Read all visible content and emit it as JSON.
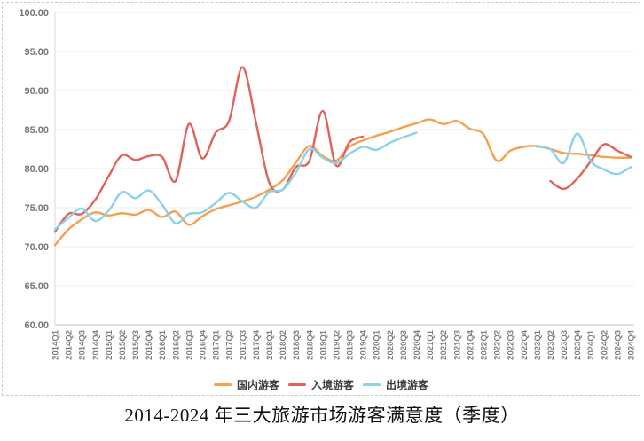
{
  "title": {
    "text": "2014-2024 年三大旅游市场游客满意度（季度）"
  },
  "chart_data": {
    "type": "line",
    "title": "2014-2024 年三大旅游市场游客满意度（季度）",
    "categories": [
      "2014Q1",
      "2014Q2",
      "2014Q3",
      "2014Q4",
      "2015Q1",
      "2015Q2",
      "2015Q3",
      "2015Q4",
      "2016Q1",
      "2016Q2",
      "2016Q3",
      "2016Q4",
      "2017Q1",
      "2017Q2",
      "2017Q3",
      "2017Q4",
      "2018Q1",
      "2018Q2",
      "2018Q3",
      "2018Q4",
      "2019Q1",
      "2019Q2",
      "2019Q3",
      "2019Q4",
      "2020Q1",
      "2020Q2",
      "2020Q3",
      "2020Q4",
      "2021Q1",
      "2021Q2",
      "2021Q3",
      "2021Q4",
      "2022Q1",
      "2022Q2",
      "2022Q3",
      "2022Q4",
      "2023Q1",
      "2023Q2",
      "2023Q3",
      "2023Q4",
      "2024Q1",
      "2024Q2",
      "2024Q3",
      "2024Q4"
    ],
    "series": [
      {
        "name": "国内游客",
        "color": "#F5A04E",
        "values": [
          70.2,
          72.2,
          73.5,
          74.4,
          74.0,
          74.3,
          74.1,
          74.7,
          73.8,
          74.5,
          72.8,
          73.9,
          74.8,
          75.3,
          75.8,
          76.4,
          77.3,
          78.5,
          80.8,
          82.9,
          81.6,
          81.0,
          82.8,
          83.6,
          84.2,
          84.7,
          85.3,
          85.8,
          86.3,
          85.7,
          86.1,
          85.1,
          84.4,
          81.0,
          82.3,
          82.8,
          82.9,
          82.5,
          82.0,
          81.9,
          81.7,
          81.5,
          81.4,
          81.4
        ]
      },
      {
        "name": "入境游客",
        "color": "#E0625A",
        "values": [
          71.9,
          74.2,
          74.2,
          76.0,
          79.0,
          81.7,
          81.1,
          81.6,
          81.5,
          78.4,
          85.7,
          81.3,
          84.6,
          86.1,
          93.0,
          86.0,
          78.2,
          77.3,
          80.2,
          81.0,
          87.4,
          80.4,
          83.4,
          84.1,
          null,
          null,
          null,
          null,
          null,
          null,
          null,
          null,
          null,
          null,
          null,
          null,
          null,
          78.4,
          77.4,
          78.7,
          80.9,
          83.1,
          82.3,
          81.5
        ]
      },
      {
        "name": "出境游客",
        "color": "#8BD2E8",
        "values": [
          72.2,
          73.7,
          74.9,
          73.3,
          74.6,
          77.0,
          76.2,
          77.2,
          75.4,
          73.0,
          74.2,
          74.4,
          75.6,
          76.9,
          75.8,
          75.0,
          77.0,
          77.3,
          79.5,
          82.5,
          81.4,
          80.7,
          81.9,
          82.8,
          82.4,
          83.3,
          84.0,
          84.6,
          null,
          null,
          null,
          null,
          null,
          null,
          null,
          null,
          82.8,
          82.5,
          80.7,
          84.5,
          81.0,
          79.9,
          79.3,
          80.2
        ]
      }
    ],
    "y_axis": {
      "min": 60,
      "max": 100,
      "step": 5,
      "tick_labels": [
        "100.00",
        "95.00",
        "90.00",
        "85.00",
        "80.00",
        "75.00",
        "70.00",
        "65.00",
        "60.00"
      ]
    },
    "x_tick_rotation": 90,
    "grid": true,
    "legend_position": "bottom",
    "colors": {
      "grid_line": "#eeeeee",
      "axis_line": "#bfbfbf",
      "left_axis_line": "#d9d9d9",
      "tick_text": "#767676",
      "legend_text": "#3f3f3f"
    }
  }
}
